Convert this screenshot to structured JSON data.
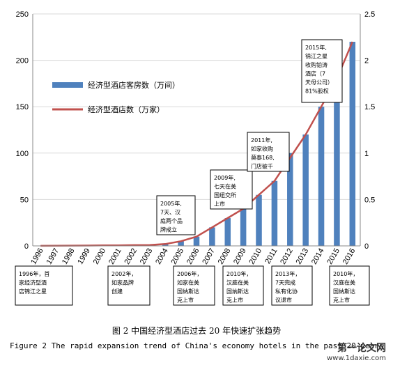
{
  "chart_data": {
    "type": "bar+line",
    "categories": [
      "1996",
      "1997",
      "1998",
      "1999",
      "2000",
      "2001",
      "2002",
      "2003",
      "2004",
      "2005",
      "2006",
      "2007",
      "2008",
      "2009",
      "2010",
      "2011",
      "2012",
      "2013",
      "2014",
      "2015",
      "2016"
    ],
    "left_axis": {
      "ylim": [
        0,
        250
      ],
      "ticks": [
        "0",
        "50",
        "100",
        "150",
        "200",
        "250"
      ]
    },
    "right_axis": {
      "ylim": [
        0,
        2.5
      ],
      "ticks": [
        "0",
        "0.5",
        "1",
        "1.5",
        "2",
        "2.5"
      ]
    },
    "series": [
      {
        "name": "经济型酒店客房数（万间）",
        "kind": "bar",
        "axis": "left",
        "color": "#4f81bd",
        "values": [
          0.1,
          0.2,
          0.3,
          0.4,
          0.5,
          0.6,
          0.8,
          1,
          2,
          5,
          10,
          20,
          30,
          40,
          55,
          70,
          100,
          120,
          150,
          175,
          220
        ]
      },
      {
        "name": "经济型酒店数（万家）",
        "kind": "line",
        "axis": "right",
        "color": "#c0504d",
        "values": [
          0.001,
          0.002,
          0.003,
          0.004,
          0.005,
          0.006,
          0.008,
          0.01,
          0.02,
          0.05,
          0.1,
          0.2,
          0.3,
          0.4,
          0.55,
          0.7,
          0.95,
          1.2,
          1.5,
          1.8,
          2.2
        ]
      }
    ],
    "annotations_top": [
      {
        "lines": [
          "2005年,",
          "7天、汉",
          "庭两个品",
          "牌成立"
        ]
      },
      {
        "lines": [
          "2009年,",
          "七天在美",
          "国纽交所",
          "上市"
        ]
      },
      {
        "lines": [
          "2011年,",
          "如家收购",
          "莫泰168,",
          "门店破千"
        ]
      },
      {
        "lines": [
          "2015年,",
          "锦江之星",
          "收购铂涛",
          "酒店（7",
          "天母公司）",
          "81%股权"
        ]
      }
    ],
    "annotations_bottom": [
      {
        "lines": [
          "1996年，首",
          "家经济型酒",
          "店锦江之星"
        ]
      },
      {
        "lines": [
          "2002年，",
          "如家品牌",
          "创建"
        ]
      },
      {
        "lines": [
          "2006年，",
          "如家在美",
          "国纳斯达",
          "克上市"
        ]
      },
      {
        "lines": [
          "2010年，",
          "汉庭在美",
          "国纳斯达",
          "克上市"
        ]
      },
      {
        "lines": [
          "2013年，",
          "7天完成",
          "私有化协",
          "议退市"
        ]
      },
      {
        "lines": [
          "2010年，",
          "汉庭在美",
          "国纳斯达",
          "克上市"
        ]
      }
    ]
  },
  "caption": {
    "cn": "图 2 中国经济型酒店过去 20 年快速扩张趋势",
    "en": "Figure 2 The rapid expansion trend of China's economy hotels in the past 20 years"
  },
  "watermark": {
    "line1": "第一论文网",
    "line2": "www.1daxie.com"
  }
}
